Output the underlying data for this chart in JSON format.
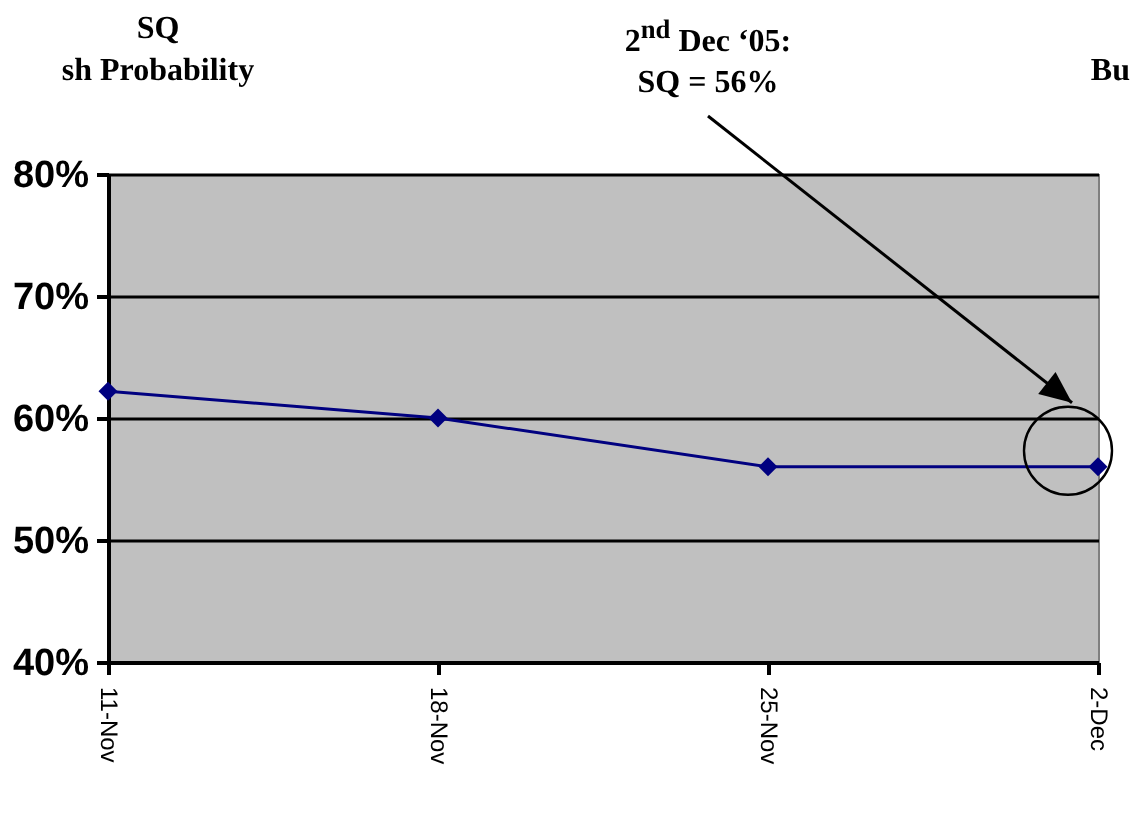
{
  "chart_data": {
    "type": "line",
    "categories": [
      "11-Nov",
      "18-Nov",
      "25-Nov",
      "2-Dec"
    ],
    "series": [
      {
        "color": "#000080",
        "values": [
          62.2,
          60,
          56,
          56
        ]
      }
    ],
    "ylim": [
      40,
      80
    ],
    "yticks": [
      {
        "value": 40,
        "label": "40%"
      },
      {
        "value": 50,
        "label": "50%"
      },
      {
        "value": 60,
        "label": "60%"
      },
      {
        "value": 70,
        "label": "70%"
      },
      {
        "value": 80,
        "label": "80%"
      }
    ],
    "grid": "y",
    "marker": "diamond",
    "annotations": [
      "SQ",
      "sh Probability",
      "2$^{nd}$ Dec ‘05:\nSQ = 56%",
      "Bu"
    ]
  }
}
